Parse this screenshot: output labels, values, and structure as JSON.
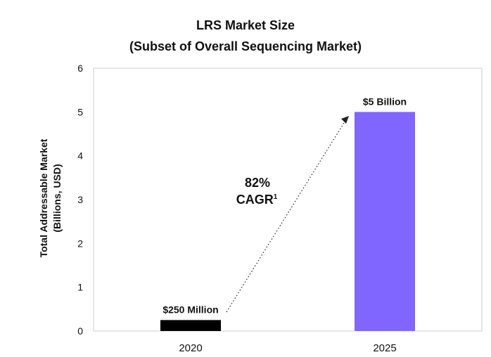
{
  "chart_data": {
    "type": "bar",
    "title": "LRS Market Size",
    "subtitle": "(Subset of Overall Sequencing Market)",
    "ylabel_line1": "Total Addressable Market",
    "ylabel_line2": "(Billions, USD)",
    "categories": [
      "2020",
      "2025"
    ],
    "values": [
      0.25,
      5
    ],
    "data_labels": [
      "$250 Million",
      "$5 Billion"
    ],
    "bar_colors": [
      "#000000",
      "#8066ff"
    ],
    "ylim": [
      0,
      6
    ],
    "yticks": [
      "0",
      "1",
      "2",
      "3",
      "4",
      "5",
      "6"
    ],
    "grid": false,
    "annotation": {
      "line1": "82%",
      "line2": "CAGR",
      "superscript": "1"
    }
  }
}
